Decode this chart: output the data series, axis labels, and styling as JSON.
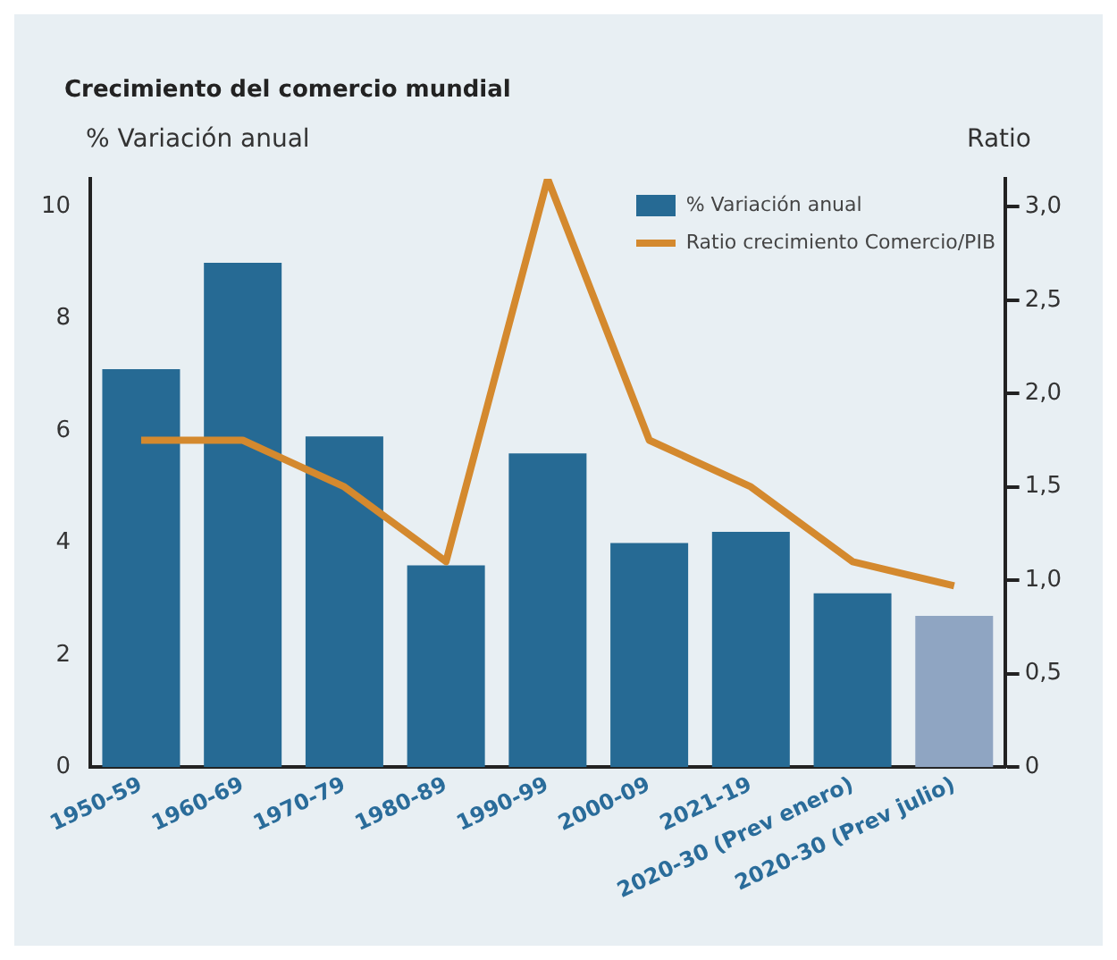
{
  "chart_data": {
    "type": "bar",
    "title": "Crecimiento del comercio mundial",
    "ylabel": "% Variación anual",
    "y2label": "Ratio",
    "categories": [
      "1950-59",
      "1960-69",
      "1970-79",
      "1980-89",
      "1990-99",
      "2000-09",
      "2021-19",
      "2020-30 (Prev enero)",
      "2020-30 (Prev julio)"
    ],
    "series": [
      {
        "name": "% Variación anual",
        "color": "#266a94",
        "colors": [
          "#266a94",
          "#266a94",
          "#266a94",
          "#266a94",
          "#266a94",
          "#266a94",
          "#266a94",
          "#266a94",
          "#8fa5c2"
        ],
        "values": [
          7.1,
          9.0,
          5.9,
          3.6,
          5.6,
          4.0,
          4.2,
          3.1,
          2.7
        ]
      },
      {
        "name": "Ratio crecimiento Comercio/PIB",
        "type": "line",
        "axis": "y2",
        "color": "#d4892e",
        "values": [
          1.75,
          1.75,
          1.5,
          1.1,
          3.15,
          1.75,
          1.5,
          1.1,
          0.97
        ]
      }
    ],
    "ylim": [
      0,
      10.5
    ],
    "yticks": [
      0,
      2,
      4,
      6,
      8,
      10
    ],
    "y2lim": [
      0,
      3.15
    ],
    "y2ticks": [
      0,
      {
        "value": 0.5,
        "label": "0,5"
      },
      {
        "value": 1,
        "label": "1,0"
      },
      {
        "value": 1.5,
        "label": "1,5"
      },
      {
        "value": 2,
        "label": "2,0"
      },
      {
        "value": 2.5,
        "label": "2,5"
      },
      {
        "value": 3,
        "label": "3,0"
      }
    ],
    "grid": false,
    "legend": "top right",
    "marker": "none",
    "line_style": "solid"
  }
}
